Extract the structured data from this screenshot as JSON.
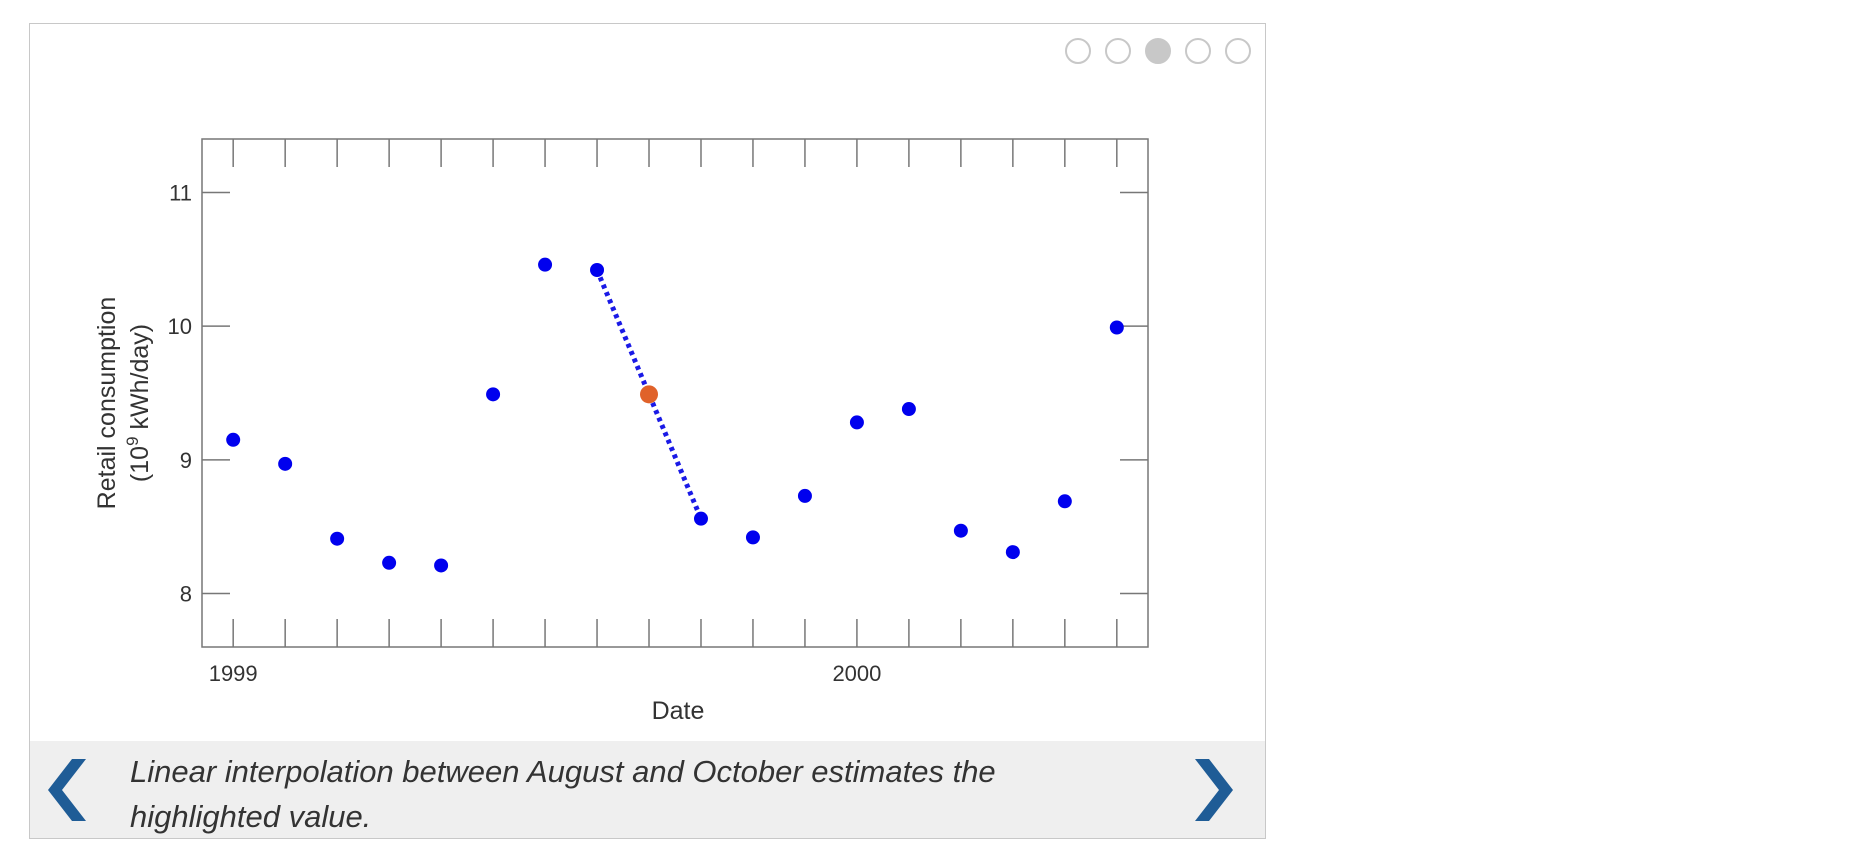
{
  "pager": {
    "slide_count": 5,
    "active_index": 2
  },
  "caption": "Linear interpolation between August and October estimates the highlighted value.",
  "navigation": {
    "prev_icon": "chevron-left-icon",
    "next_icon": "chevron-right-icon"
  },
  "colors": {
    "points": "#0000ee",
    "highlight": "#e0622a",
    "interp_line": "#1a1ae6",
    "nav": "#1f5c96"
  },
  "chart_data": {
    "type": "scatter",
    "xlabel": "Date",
    "ylabel_line1": "Retail consumption",
    "ylabel_base": "(10",
    "ylabel_sup": "9",
    "ylabel_rest": " kWh/day)",
    "x_tick_labels": [
      "1999",
      "2000"
    ],
    "y_ticks": [
      8,
      9,
      10,
      11
    ],
    "ylim": [
      7.6,
      11.4
    ],
    "x_range_months": [
      -0.6,
      17.6
    ],
    "series": [
      {
        "x": [
          "1999-01",
          "1999-02",
          "1999-03",
          "1999-04",
          "1999-05",
          "1999-06",
          "1999-07",
          "1999-08",
          "1999-10",
          "1999-11",
          "1999-12",
          "2000-01",
          "2000-02",
          "2000-03",
          "2000-04",
          "2000-05",
          "2000-06"
        ],
        "y": [
          9.15,
          8.97,
          8.41,
          8.23,
          8.21,
          9.49,
          10.46,
          10.42,
          8.56,
          8.42,
          8.73,
          9.28,
          9.38,
          8.47,
          8.31,
          8.69,
          9.99
        ]
      }
    ],
    "highlight": {
      "x": "1999-09",
      "y": 9.49
    },
    "interpolation": {
      "from": {
        "x": "1999-08",
        "y": 10.42
      },
      "to": {
        "x": "1999-10",
        "y": 8.56
      }
    }
  }
}
